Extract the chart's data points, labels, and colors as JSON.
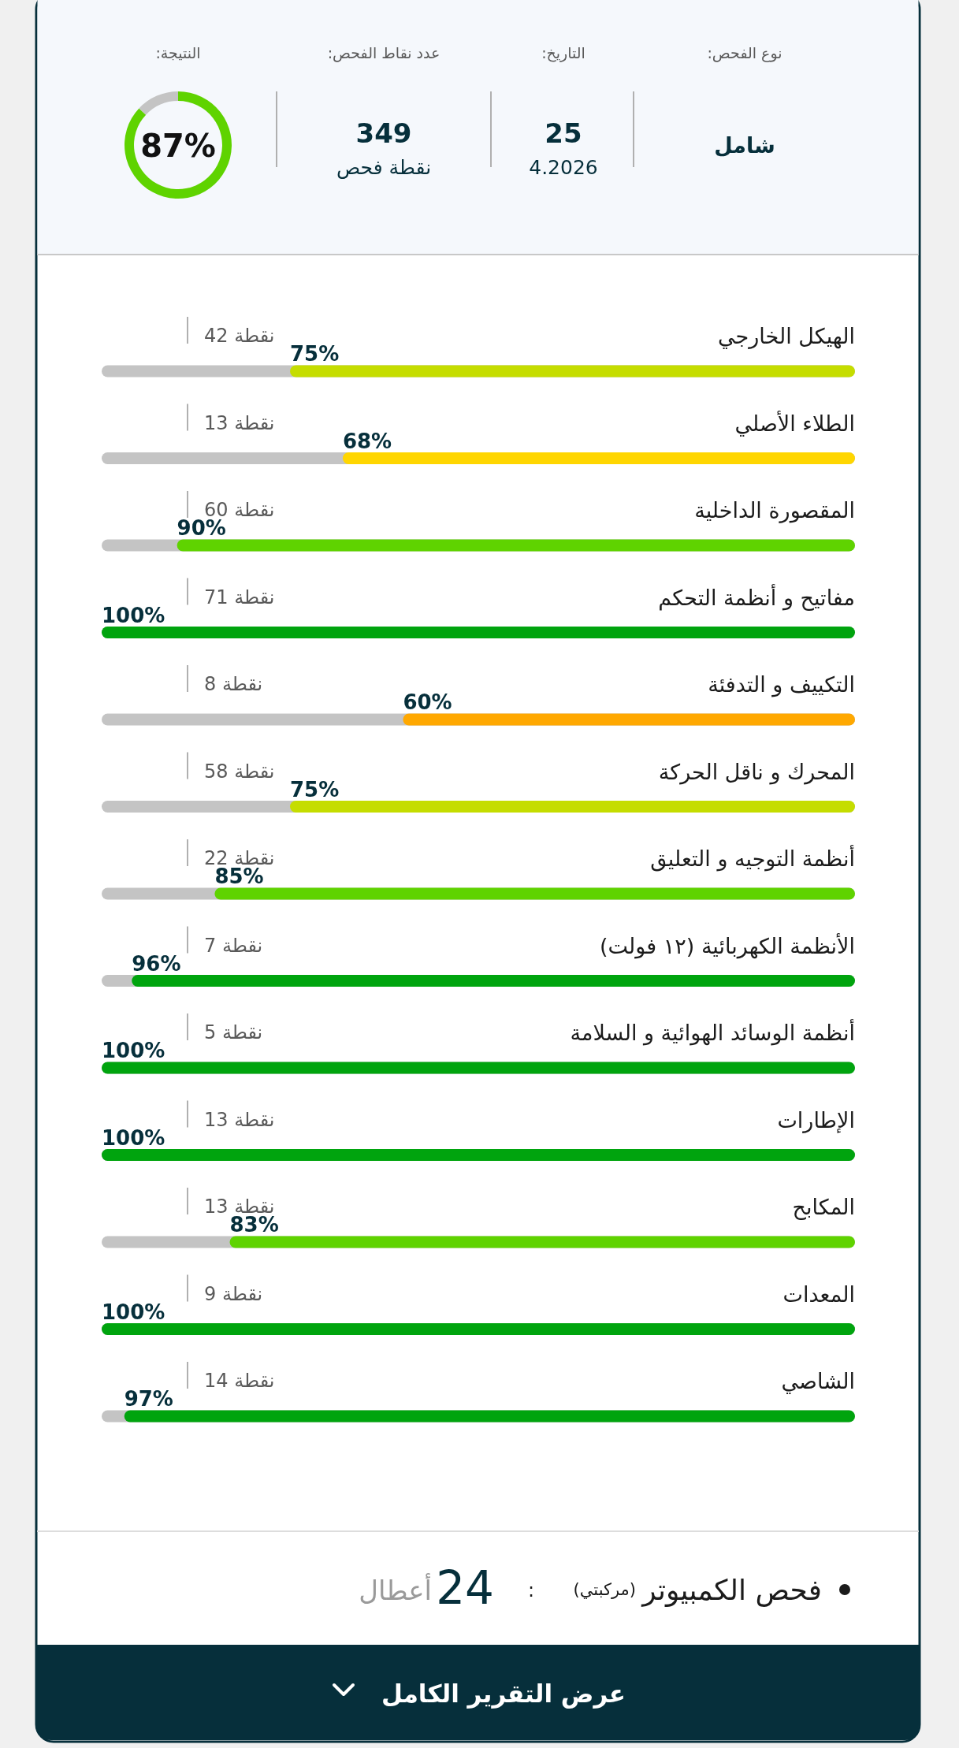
{
  "chart_data": [
    {
      "type": "other",
      "annotations": [
        "نوع الفحص:",
        "شامل",
        "التاريخ:",
        "25",
        "4.2026",
        "عدد نقاط الفحص:",
        "349",
        "نقطة فحص"
      ]
    },
    {
      "type": "donut",
      "title": "النتيجة:",
      "categories": [
        null,
        null
      ],
      "values": [
        87,
        13
      ],
      "colors": [
        "#5fd300",
        "#c4c4c4"
      ],
      "value_labels": [
        "87%",
        null
      ]
    },
    {
      "type": "bar",
      "orientation": "horizontal",
      "xlim": [
        100,
        0
      ],
      "categories": [
        "الهيكل الخارجي",
        "الطلاء الأصلي",
        "المقصورة الداخلية",
        "مفاتيح و أنظمة التحكم",
        "التكييف و التدفئة",
        "المحرك و ناقل الحركة",
        "أنظمة التوجيه و التعليق",
        "الأنظمة الكهربائية (١٢ فولت)",
        "أنظمة الوسائد الهوائية و السلامة",
        "الإطارات",
        "المكابح",
        "المعدات",
        "الشاصي"
      ],
      "values": [
        75,
        68,
        90,
        100,
        60,
        75,
        85,
        96,
        100,
        100,
        83,
        100,
        97
      ],
      "colors": [
        "#c5dd00",
        "#ffd600",
        "#5fd300",
        "#00a40e",
        "#ffa800",
        "#c5dd00",
        "#5fd300",
        "#00a40e",
        "#00a40e",
        "#00a40e",
        "#5fd300",
        "#00a40e",
        "#00a40e"
      ],
      "value_labels": [
        "75%",
        "68%",
        "90%",
        "100%",
        "60%",
        "75%",
        "85%",
        "96%",
        "100%",
        "100%",
        "83%",
        "100%",
        "97%"
      ],
      "annotations": [
        "42 نقطة",
        "13 نقطة",
        "60 نقطة",
        "71 نقطة",
        "8 نقطة",
        "58 نقطة",
        "22 نقطة",
        "7 نقطة",
        "5 نقطة",
        "13 نقطة",
        "13 نقطة",
        "9 نقطة",
        "14 نقطة"
      ]
    },
    {
      "type": "other",
      "annotations": [
        "فحص الكمبيوتر",
        "(مركبتي)",
        ":",
        "24",
        "أعطال",
        "عرض التقرير الكامل"
      ]
    }
  ]
}
